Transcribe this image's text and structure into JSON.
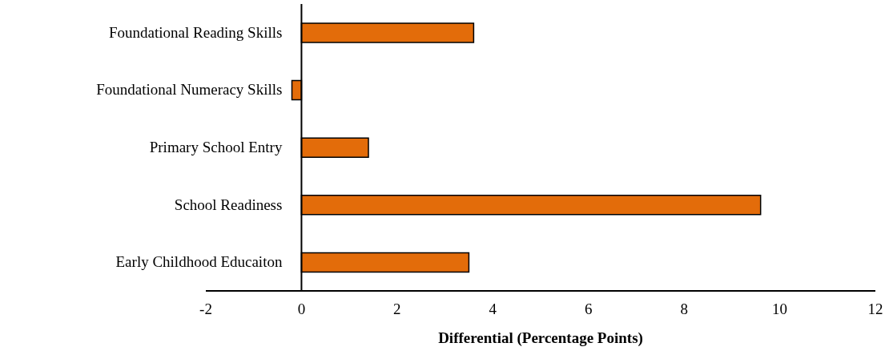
{
  "chart_data": {
    "type": "bar",
    "orientation": "horizontal",
    "xlabel": "Differential (Percentage Points)",
    "categories": [
      "Foundational Reading Skills",
      "Foundational Numeracy Skills",
      "Primary School Entry",
      "School Readiness",
      "Early Childhood Educaiton"
    ],
    "values": [
      3.6,
      -0.2,
      1.4,
      9.6,
      3.5
    ],
    "color": "#e36c0a",
    "xlim": [
      -2,
      12
    ],
    "xticks": [
      -2,
      0,
      2,
      4,
      6,
      8,
      10,
      12
    ],
    "grid": false
  }
}
